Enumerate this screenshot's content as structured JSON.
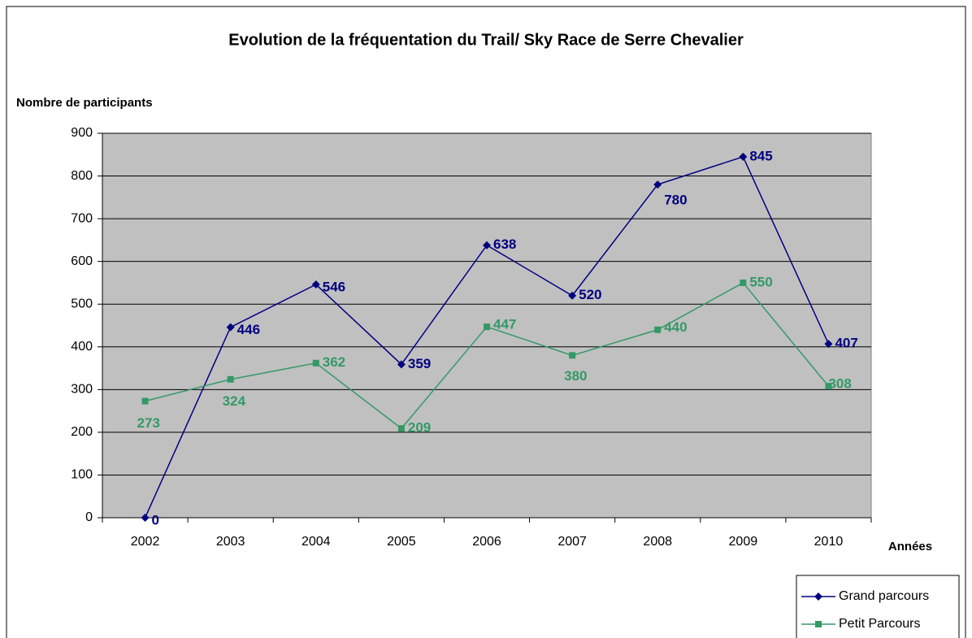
{
  "chart_data": {
    "type": "line",
    "title": "Evolution de la fréquentation du Trail/ Sky Race de Serre Chevalier",
    "y_label": "Nombre de participants",
    "x_label": "Années",
    "categories": [
      "2002",
      "2003",
      "2004",
      "2005",
      "2006",
      "2007",
      "2008",
      "2009",
      "2010"
    ],
    "series": [
      {
        "name": "Grand parcours",
        "color": "#000080",
        "marker": "diamond",
        "values": [
          0,
          446,
          546,
          359,
          638,
          520,
          780,
          845,
          407
        ]
      },
      {
        "name": "Petit Parcours",
        "color": "#339966",
        "marker": "square",
        "values": [
          273,
          324,
          362,
          209,
          447,
          380,
          440,
          550,
          308
        ]
      }
    ],
    "ylim": [
      0,
      900
    ],
    "yticks": [
      0,
      100,
      200,
      300,
      400,
      500,
      600,
      700,
      800,
      900
    ],
    "grid": true,
    "legend": "bottom-right",
    "plot_background": "#c0c0c0"
  }
}
